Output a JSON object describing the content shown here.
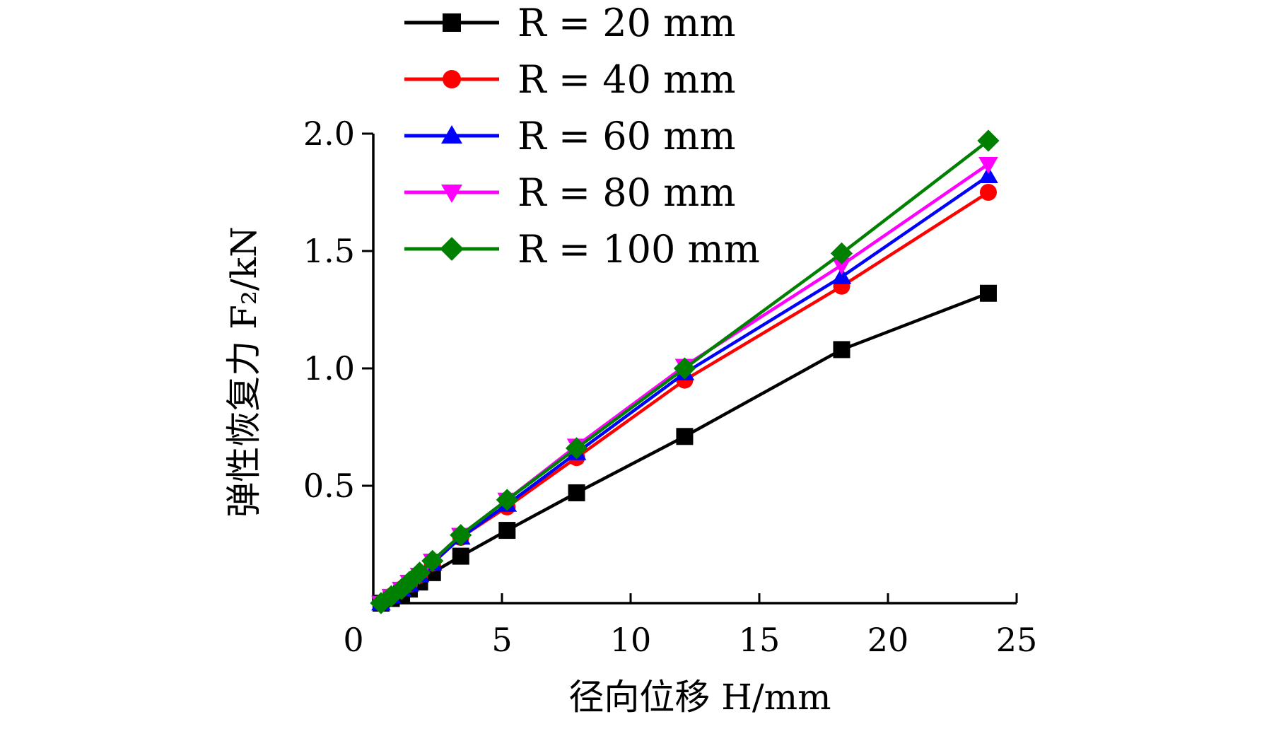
{
  "chart_data": {
    "type": "line",
    "xlabel": "径向位移 H/mm",
    "ylabel": "弹性恢复力 F₂/kN",
    "xlim": [
      0,
      25
    ],
    "ylim": [
      0,
      2.0
    ],
    "x_ticks": [
      0,
      5,
      10,
      15,
      20,
      25
    ],
    "x_tick_labels": [
      "0",
      "5",
      "10",
      "15",
      "20",
      "25"
    ],
    "y_ticks": [
      0.5,
      1.0,
      1.5,
      2.0
    ],
    "y_tick_labels": [
      "0.5",
      "1.0",
      "1.5",
      "2.0"
    ],
    "grid": false,
    "legend_position": "top-left",
    "series": [
      {
        "name": "R = 20 mm",
        "color": "#000000",
        "marker": "square",
        "x": [
          0.3,
          0.7,
          1.1,
          1.4,
          1.8,
          2.3,
          3.4,
          5.2,
          7.9,
          12.1,
          18.2,
          23.9
        ],
        "y": [
          0.0,
          0.02,
          0.04,
          0.06,
          0.09,
          0.13,
          0.2,
          0.31,
          0.47,
          0.71,
          1.08,
          1.32
        ]
      },
      {
        "name": "R = 40 mm",
        "color": "#ff0000",
        "marker": "circle",
        "x": [
          0.3,
          0.7,
          1.1,
          1.4,
          1.8,
          2.3,
          3.4,
          5.2,
          7.9,
          12.1,
          18.2,
          23.9
        ],
        "y": [
          0.0,
          0.03,
          0.06,
          0.08,
          0.12,
          0.17,
          0.28,
          0.41,
          0.62,
          0.95,
          1.35,
          1.75
        ]
      },
      {
        "name": "R = 60 mm",
        "color": "#0000ff",
        "marker": "triangle-up",
        "x": [
          0.3,
          0.7,
          1.1,
          1.4,
          1.8,
          2.3,
          3.4,
          5.2,
          7.9,
          12.1,
          18.2,
          23.9
        ],
        "y": [
          0.0,
          0.03,
          0.06,
          0.08,
          0.12,
          0.17,
          0.28,
          0.42,
          0.64,
          0.98,
          1.39,
          1.82
        ]
      },
      {
        "name": "R = 80 mm",
        "color": "#ff00ff",
        "marker": "triangle-down",
        "x": [
          0.3,
          0.7,
          1.1,
          1.4,
          1.8,
          2.3,
          3.4,
          5.2,
          7.9,
          12.1,
          18.2,
          23.9
        ],
        "y": [
          0.0,
          0.03,
          0.06,
          0.09,
          0.12,
          0.18,
          0.29,
          0.44,
          0.67,
          1.01,
          1.44,
          1.87
        ]
      },
      {
        "name": "R = 100 mm",
        "color": "#008000",
        "marker": "diamond",
        "x": [
          0.3,
          0.7,
          1.1,
          1.4,
          1.8,
          2.3,
          3.4,
          5.2,
          7.9,
          12.1,
          18.2,
          23.9
        ],
        "y": [
          0.0,
          0.03,
          0.06,
          0.09,
          0.13,
          0.18,
          0.29,
          0.44,
          0.66,
          1.0,
          1.49,
          1.97
        ]
      }
    ]
  }
}
